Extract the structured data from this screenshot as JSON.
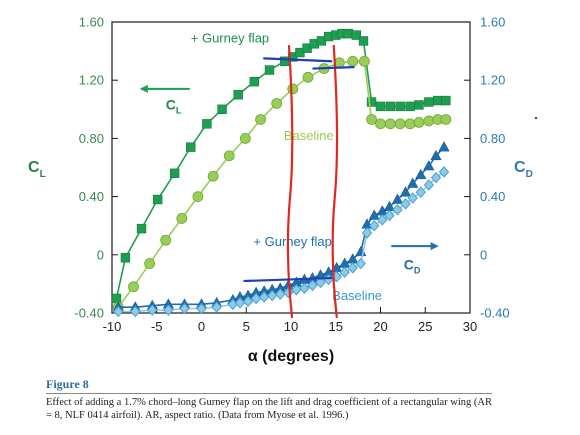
{
  "chart_data": {
    "type": "scatter",
    "x": {
      "label_symbol": "α",
      "label_text": "(degrees)",
      "range": [
        -10,
        30
      ],
      "ticks": [
        -10,
        -5,
        0,
        5,
        10,
        15,
        20,
        25,
        30
      ]
    },
    "y_left": {
      "label": "C",
      "label_sub": "L",
      "range": [
        -0.4,
        1.6
      ],
      "ticks": [
        "-0.40",
        "0",
        "0.40",
        "0.80",
        "1.20",
        "1.60"
      ]
    },
    "y_right": {
      "label": "C",
      "label_sub": "D",
      "range": [
        -0.4,
        1.6
      ],
      "ticks": [
        "-0.40",
        "0",
        "0.40",
        "0.80",
        "1.20",
        "1.60"
      ]
    },
    "series": [
      {
        "key": "cl_gurney",
        "axis": "left",
        "marker": "square",
        "color": "#1e9e50",
        "x": [
          -9.5,
          -8.5,
          -6.7,
          -4.9,
          -3,
          -1.2,
          0.6,
          2.3,
          4.1,
          5.9,
          7.6,
          9.3,
          10.2,
          11,
          11.8,
          12.6,
          13.4,
          14.2,
          15,
          15.7,
          16.4,
          17.3,
          18.1,
          19,
          20,
          21.1,
          22.2,
          23.3,
          24.3,
          25.4,
          26.4,
          27.3
        ],
        "y": [
          -0.3,
          -0.02,
          0.18,
          0.38,
          0.56,
          0.74,
          0.9,
          1.0,
          1.1,
          1.19,
          1.27,
          1.33,
          1.36,
          1.39,
          1.42,
          1.45,
          1.47,
          1.5,
          1.51,
          1.52,
          1.52,
          1.51,
          1.47,
          1.05,
          1.02,
          1.02,
          1.02,
          1.02,
          1.03,
          1.05,
          1.06,
          1.06
        ]
      },
      {
        "key": "cl_baseline",
        "axis": "left",
        "marker": "circle",
        "color": "#9acd55",
        "x": [
          -9.3,
          -7.6,
          -5.8,
          -4,
          -2.2,
          -0.4,
          1.3,
          3.1,
          4.9,
          6.6,
          8.4,
          10.2,
          11.9,
          13.7,
          15.4,
          16.9,
          18.2,
          19,
          20,
          21.1,
          22.2,
          23.3,
          24.3,
          25.4,
          26.4,
          27.3
        ],
        "y": [
          -0.36,
          -0.22,
          -0.06,
          0.1,
          0.25,
          0.4,
          0.54,
          0.68,
          0.8,
          0.93,
          1.04,
          1.14,
          1.22,
          1.28,
          1.32,
          1.33,
          1.33,
          0.93,
          0.9,
          0.9,
          0.9,
          0.9,
          0.91,
          0.92,
          0.93,
          0.93
        ]
      },
      {
        "key": "cd_gurney",
        "axis": "right",
        "marker": "triangle",
        "color": "#1f6fb0",
        "x": [
          -9.3,
          -7.4,
          -5.5,
          -3.7,
          -1.9,
          0,
          1.7,
          3.5,
          4.3,
          5.2,
          6.1,
          7,
          7.9,
          8.8,
          9.7,
          10.6,
          11.5,
          12.4,
          13.3,
          14.2,
          15.1,
          16,
          16.9,
          17.8,
          18.5,
          19.3,
          20.2,
          21,
          21.9,
          22.8,
          23.6,
          24.5,
          25.4,
          26.2,
          27.1
        ],
        "y": [
          -0.36,
          -0.36,
          -0.35,
          -0.34,
          -0.34,
          -0.34,
          -0.33,
          -0.31,
          -0.29,
          -0.28,
          -0.26,
          -0.25,
          -0.24,
          -0.23,
          -0.21,
          -0.19,
          -0.17,
          -0.16,
          -0.14,
          -0.12,
          -0.09,
          -0.06,
          -0.03,
          0.02,
          0.21,
          0.27,
          0.3,
          0.33,
          0.38,
          0.43,
          0.49,
          0.55,
          0.61,
          0.68,
          0.74
        ]
      },
      {
        "key": "cd_baseline",
        "axis": "right",
        "marker": "diamond",
        "color": "#8ccbe8",
        "x": [
          -9.3,
          -7.4,
          -5.5,
          -3.7,
          -1.9,
          0,
          1.7,
          3.5,
          4.3,
          5.2,
          6.1,
          7,
          7.9,
          8.8,
          9.7,
          10.6,
          11.5,
          12.4,
          13.3,
          14.2,
          15.1,
          16,
          16.9,
          17.8,
          18.5,
          19.3,
          20.2,
          21,
          21.9,
          22.8,
          23.6,
          24.5,
          25.4,
          26.2,
          27.1
        ],
        "y": [
          -0.39,
          -0.39,
          -0.38,
          -0.38,
          -0.37,
          -0.37,
          -0.36,
          -0.34,
          -0.33,
          -0.32,
          -0.3,
          -0.29,
          -0.28,
          -0.27,
          -0.26,
          -0.24,
          -0.23,
          -0.21,
          -0.19,
          -0.17,
          -0.15,
          -0.12,
          -0.09,
          -0.06,
          0.15,
          0.2,
          0.24,
          0.27,
          0.31,
          0.35,
          0.39,
          0.43,
          0.48,
          0.53,
          0.57
        ]
      }
    ],
    "annotations": {
      "gurney_cl": "+ Gurney flap",
      "baseline_cl": "Baseline",
      "cl_arrow_label": "C",
      "cl_arrow_label_sub": "L",
      "gurney_cd": "+ Gurney flap",
      "baseline_cd": "Baseline",
      "cd_arrow_label": "C",
      "cd_arrow_label_sub": "D"
    },
    "overlay_marks": {
      "red_lines_at_x": [
        10,
        15
      ],
      "blue_lines": [
        {
          "x": [
            7,
            14.5
          ],
          "y": [
            1.35,
            1.33
          ]
        },
        {
          "x": [
            12.5,
            17
          ],
          "y": [
            1.28,
            1.29
          ]
        },
        {
          "x": [
            4.8,
            14.5
          ],
          "y": [
            -0.18,
            -0.16
          ]
        }
      ]
    },
    "grid": false,
    "legend": "none"
  },
  "figure": {
    "label": "Figure 8",
    "caption": "Effect of adding a 1.7% chord–long Gurney flap on the lift and drag coefficient of a rectangular wing (AR = 8, NLF 0414 airfoil). AR, aspect ratio. (Data from Myose et al. 1996.)"
  },
  "colors": {
    "left_axis_text": "#3a8a52",
    "right_axis_text": "#2e7bb0",
    "red_marker": "#e0281e",
    "blue_marker": "#1f3fb5"
  }
}
